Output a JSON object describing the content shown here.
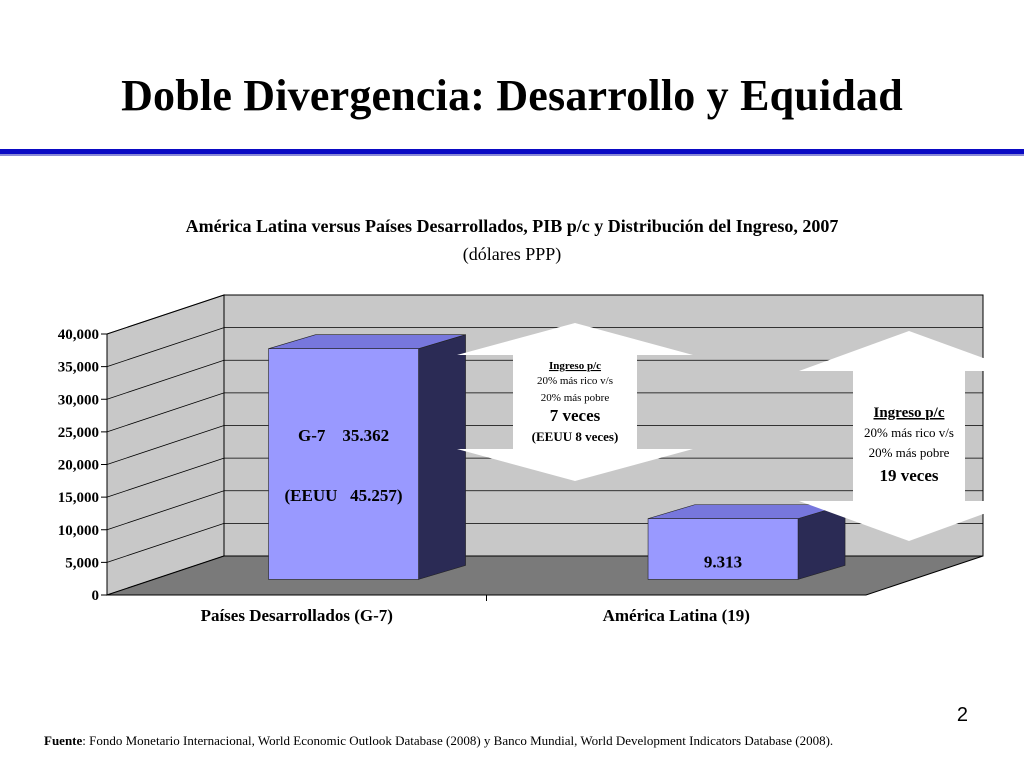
{
  "slide": {
    "title": "Doble Divergencia: Desarrollo y Equidad",
    "page_number": "2"
  },
  "footnote": {
    "label": "Fuente",
    "text": ": Fondo Monetario Internacional, World Economic Outlook Database (2008) y Banco Mundial, World Development Indicators Database (2008)."
  },
  "colors": {
    "title_rule": "#0a0ac4",
    "bar_front": "#9999ff",
    "bar_side_dark": "#2b2b55",
    "bar_top": "#7777dd",
    "wall": "#c8c8c8",
    "floor": "#7a7a7a"
  },
  "chart_data": {
    "type": "bar",
    "title": "América Latina versus Países Desarrollados, PIB p/c y Distribución del Ingreso, 2007",
    "subtitle": "(dólares PPP)",
    "categories": [
      "Países Desarrollados (G-7)",
      "América Latina (19)"
    ],
    "values": [
      35362,
      9313
    ],
    "ylim": [
      0,
      40000
    ],
    "yticks": [
      "0",
      "5,000",
      "10,000",
      "15,000",
      "20,000",
      "25,000",
      "30,000",
      "35,000",
      "40,000"
    ],
    "grid": true,
    "three_d": true,
    "bar_labels": [
      [
        "G-7    35.362",
        "(EEUU   45.257)"
      ],
      [
        "9.313"
      ]
    ],
    "annotations": [
      {
        "heading": "Ingreso p/c",
        "lines": [
          "20% más rico v/s",
          "20% más pobre"
        ],
        "emphasis": "7 veces",
        "note": "(EEUU 8 veces)"
      },
      {
        "heading": "Ingreso p/c",
        "lines": [
          "20% más rico v/s",
          "20% más pobre"
        ],
        "emphasis": "19 veces",
        "note": ""
      }
    ]
  }
}
